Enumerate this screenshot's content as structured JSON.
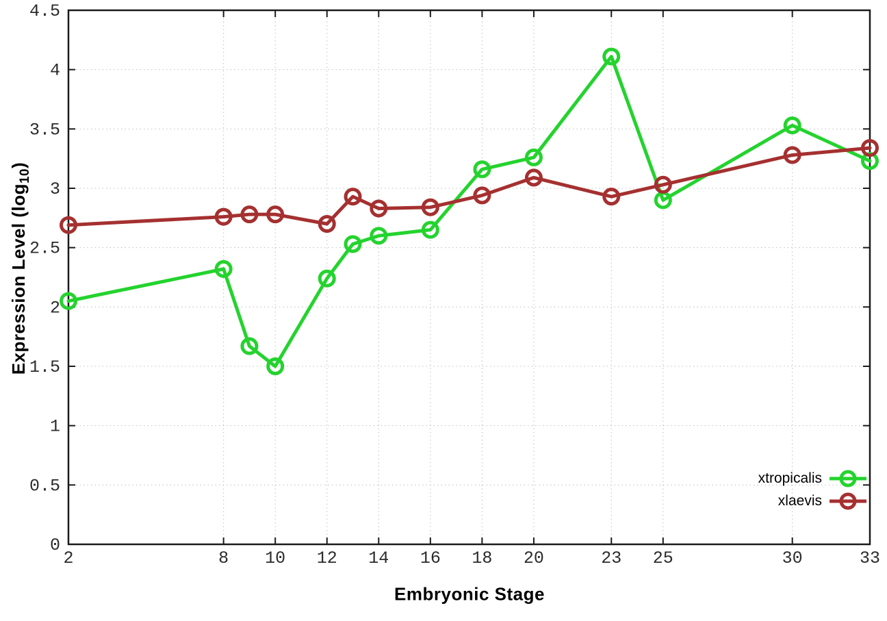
{
  "chart_data": {
    "type": "line",
    "title": "",
    "xlabel": "Embryonic Stage",
    "ylabel": "Expression Level (log10)",
    "ylabel_parts": {
      "pre": "Expression Level (log",
      "sub": "10",
      "post": ")"
    },
    "x": [
      2,
      8,
      9,
      10,
      12,
      13,
      14,
      16,
      18,
      20,
      23,
      25,
      30,
      33
    ],
    "series": [
      {
        "name": "xtropicalis",
        "color": "#24d32e",
        "values": [
          2.05,
          2.32,
          1.67,
          1.5,
          2.24,
          2.53,
          2.6,
          2.65,
          3.16,
          3.26,
          4.11,
          2.9,
          3.53,
          3.23
        ]
      },
      {
        "name": "xlaevis",
        "color": "#a53030",
        "values": [
          2.69,
          2.76,
          2.78,
          2.78,
          2.7,
          2.93,
          2.83,
          2.84,
          2.94,
          3.09,
          2.93,
          3.03,
          3.28,
          3.34
        ]
      }
    ],
    "xlim": [
      2,
      33
    ],
    "ylim": [
      0,
      4.5
    ],
    "x_ticks": [
      2,
      8,
      10,
      12,
      14,
      16,
      18,
      20,
      23,
      25,
      30,
      33
    ],
    "y_ticks": [
      0,
      0.5,
      1,
      1.5,
      2,
      2.5,
      3,
      3.5,
      4,
      4.5
    ],
    "grid": true,
    "legend_position": "inside bottom-right",
    "border_color": "#1a1a1a",
    "grid_color": "#bdbdbd",
    "tick_label_color": "#2b2b2b"
  }
}
